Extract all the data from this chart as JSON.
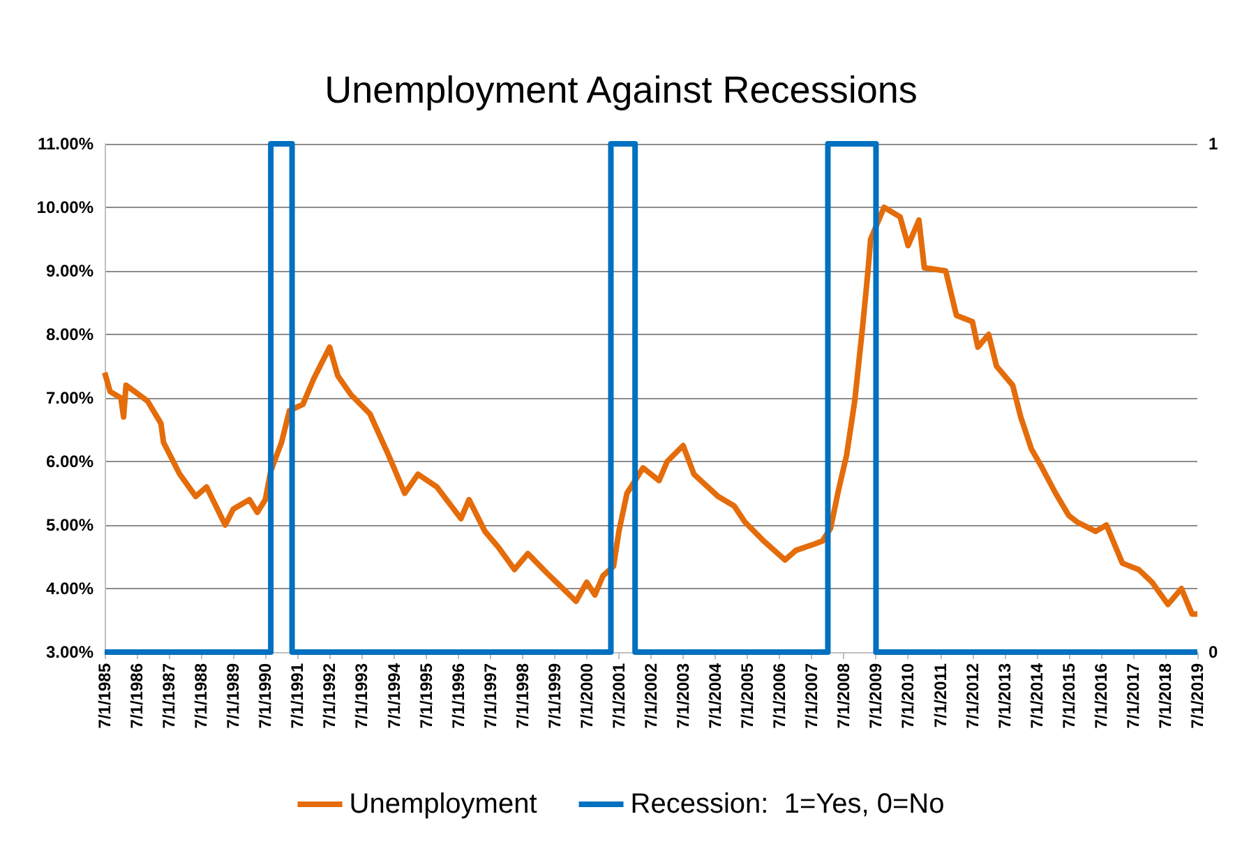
{
  "chart_data": {
    "type": "line",
    "title": "Unemployment Against Recessions",
    "xlim": [
      "1985-07-01",
      "2019-07-01"
    ],
    "xticks": [
      {
        "value": "1985-07-01",
        "label": "7/1/1985"
      },
      {
        "value": "1986-07-01",
        "label": "7/1/1986"
      },
      {
        "value": "1987-07-01",
        "label": "7/1/1987"
      },
      {
        "value": "1988-07-01",
        "label": "7/1/1988"
      },
      {
        "value": "1989-07-01",
        "label": "7/1/1989"
      },
      {
        "value": "1990-07-01",
        "label": "7/1/1990"
      },
      {
        "value": "1991-07-01",
        "label": "7/1/1991"
      },
      {
        "value": "1992-07-01",
        "label": "7/1/1992"
      },
      {
        "value": "1993-07-01",
        "label": "7/1/1993"
      },
      {
        "value": "1994-07-01",
        "label": "7/1/1994"
      },
      {
        "value": "1995-07-01",
        "label": "7/1/1995"
      },
      {
        "value": "1996-07-01",
        "label": "7/1/1996"
      },
      {
        "value": "1997-07-01",
        "label": "7/1/1997"
      },
      {
        "value": "1998-07-01",
        "label": "7/1/1998"
      },
      {
        "value": "1999-07-01",
        "label": "7/1/1999"
      },
      {
        "value": "2000-07-01",
        "label": "7/1/2000"
      },
      {
        "value": "2001-07-01",
        "label": "7/1/2001"
      },
      {
        "value": "2002-07-01",
        "label": "7/1/2002"
      },
      {
        "value": "2003-07-01",
        "label": "7/1/2003"
      },
      {
        "value": "2004-07-01",
        "label": "7/1/2004"
      },
      {
        "value": "2005-07-01",
        "label": "7/1/2005"
      },
      {
        "value": "2006-07-01",
        "label": "7/1/2006"
      },
      {
        "value": "2007-07-01",
        "label": "7/1/2007"
      },
      {
        "value": "2008-07-01",
        "label": "7/1/2008"
      },
      {
        "value": "2009-07-01",
        "label": "7/1/2009"
      },
      {
        "value": "2010-07-01",
        "label": "7/1/2010"
      },
      {
        "value": "2011-07-01",
        "label": "7/1/2011"
      },
      {
        "value": "2012-07-01",
        "label": "7/1/2012"
      },
      {
        "value": "2013-07-01",
        "label": "7/1/2013"
      },
      {
        "value": "2014-07-01",
        "label": "7/1/2014"
      },
      {
        "value": "2015-07-01",
        "label": "7/1/2015"
      },
      {
        "value": "2016-07-01",
        "label": "7/1/2016"
      },
      {
        "value": "2017-07-01",
        "label": "7/1/2017"
      },
      {
        "value": "2018-07-01",
        "label": "7/1/2018"
      },
      {
        "value": "2019-07-01",
        "label": "7/1/2019"
      }
    ],
    "ylim": [
      3,
      11
    ],
    "yticks": [
      {
        "value": 3,
        "label": "3.00%"
      },
      {
        "value": 4,
        "label": "4.00%"
      },
      {
        "value": 5,
        "label": "5.00%"
      },
      {
        "value": 6,
        "label": "6.00%"
      },
      {
        "value": 7,
        "label": "7.00%"
      },
      {
        "value": 8,
        "label": "8.00%"
      },
      {
        "value": 9,
        "label": "9.00%"
      },
      {
        "value": 10,
        "label": "10.00%"
      },
      {
        "value": 11,
        "label": "11.00%"
      }
    ],
    "y2lim": [
      0,
      1
    ],
    "y2ticks": [
      0,
      1
    ],
    "grid": "y",
    "legend": "bottom",
    "marker": "none",
    "series": [
      {
        "name": "Unemployment",
        "color": "#e46c0a",
        "x": [
          "1985-07",
          "1985-09",
          "1986-01",
          "1986-02",
          "1986-03",
          "1986-11",
          "1987-04",
          "1987-05",
          "1987-11",
          "1988-05",
          "1988-09",
          "1989-04",
          "1989-07",
          "1990-01",
          "1990-04",
          "1990-07",
          "1990-09",
          "1991-01",
          "1991-04",
          "1991-09",
          "1992-01",
          "1992-07",
          "1992-10",
          "1993-03",
          "1993-10",
          "1994-05",
          "1994-11",
          "1995-04",
          "1995-11",
          "1996-08",
          "1996-11",
          "1997-05",
          "1997-10",
          "1998-04",
          "1998-09",
          "1999-04",
          "2000-03",
          "2000-07",
          "2000-10",
          "2001-01",
          "2001-05",
          "2001-07",
          "2001-10",
          "2002-01",
          "2002-04",
          "2002-10",
          "2003-01",
          "2003-07",
          "2003-11",
          "2004-08",
          "2005-02",
          "2005-06",
          "2006-01",
          "2006-09",
          "2007-01",
          "2007-08",
          "2007-11",
          "2008-02",
          "2008-05",
          "2008-08",
          "2008-11",
          "2009-02",
          "2009-04",
          "2009-05",
          "2009-10",
          "2010-04",
          "2010-07",
          "2010-11",
          "2011-01",
          "2011-09",
          "2012-01",
          "2012-07",
          "2012-09",
          "2013-01",
          "2013-04",
          "2013-10",
          "2014-01",
          "2014-05",
          "2014-09",
          "2015-02",
          "2015-07",
          "2015-10",
          "2016-05",
          "2016-09",
          "2017-03",
          "2017-09",
          "2018-02",
          "2018-08",
          "2019-01",
          "2019-05",
          "2019-07"
        ],
        "values": [
          7.4,
          7.1,
          7.0,
          6.7,
          7.2,
          6.95,
          6.6,
          6.3,
          5.8,
          5.45,
          5.6,
          5.0,
          5.25,
          5.4,
          5.2,
          5.4,
          5.85,
          6.3,
          6.8,
          6.9,
          7.3,
          7.8,
          7.35,
          7.05,
          6.75,
          6.1,
          5.5,
          5.8,
          5.6,
          5.1,
          5.4,
          4.9,
          4.65,
          4.3,
          4.55,
          4.25,
          3.8,
          4.1,
          3.9,
          4.2,
          4.35,
          4.9,
          5.5,
          5.7,
          5.9,
          5.7,
          6.0,
          6.25,
          5.8,
          5.45,
          5.3,
          5.05,
          4.75,
          4.45,
          4.6,
          4.7,
          4.75,
          4.95,
          5.55,
          6.1,
          6.95,
          8.15,
          9.0,
          9.5,
          10.0,
          9.85,
          9.4,
          9.8,
          9.05,
          9.0,
          8.3,
          8.2,
          7.8,
          8.0,
          7.5,
          7.2,
          6.7,
          6.2,
          5.9,
          5.5,
          5.15,
          5.05,
          4.9,
          5.0,
          4.4,
          4.3,
          4.1,
          3.75,
          4.0,
          3.6,
          3.6
        ]
      },
      {
        "name": "Recession:  1=Yes, 0=No",
        "color": "#0070c0",
        "type": "step",
        "axis": "y2",
        "x": [
          "1985-07",
          "1990-09",
          "1991-05",
          "2001-04",
          "2002-01",
          "2008-01",
          "2009-07",
          "2019-07"
        ],
        "values": [
          0,
          1,
          0,
          1,
          0,
          1,
          0,
          0
        ]
      }
    ]
  }
}
